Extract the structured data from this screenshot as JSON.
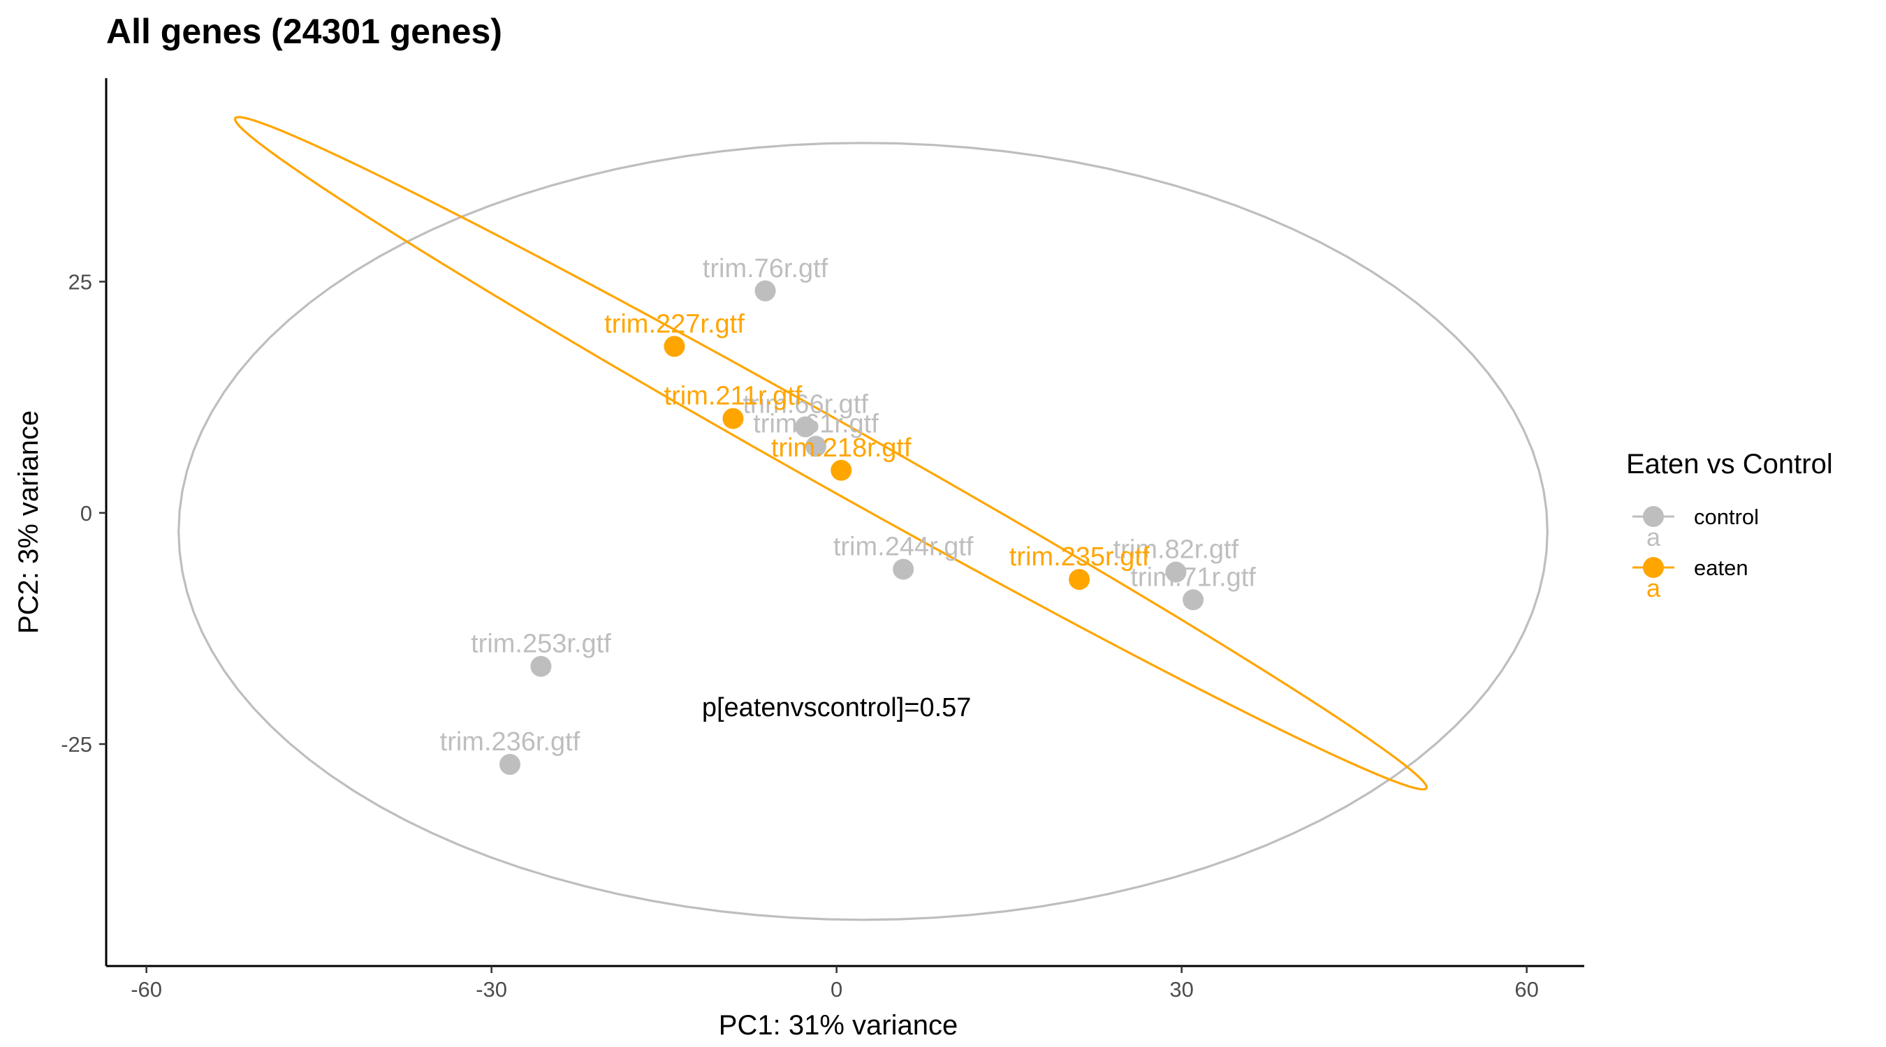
{
  "chart_data": {
    "type": "scatter",
    "title": "All genes (24301 genes)",
    "xlabel": "PC1: 31% variance",
    "ylabel": "PC2: 3% variance",
    "xlim": [
      -63.5,
      65
    ],
    "ylim": [
      -49,
      47
    ],
    "x_ticks": [
      -60,
      -30,
      0,
      30,
      60
    ],
    "x_tick_labels": [
      "-60",
      "-30",
      "0",
      "30",
      "60"
    ],
    "y_ticks": [
      -25,
      0,
      25
    ],
    "y_tick_labels": [
      "-25",
      "0",
      "25"
    ],
    "grid": false,
    "legend": {
      "title": "Eaten vs Control",
      "position": "right",
      "entries": [
        {
          "label": "control",
          "color": "#bebebe",
          "key_glyph": "a"
        },
        {
          "label": "eaten",
          "color": "#ffa500",
          "key_glyph": "a"
        }
      ]
    },
    "annotation": "p[eatenvscontrol]=0.57",
    "series": [
      {
        "name": "control",
        "color": "#bebebe",
        "points": [
          {
            "label": "trim.76r.gtf",
            "x": -6.2,
            "y": 24.0
          },
          {
            "label": "trim.66r.gtf",
            "x": -2.7,
            "y": 9.3
          },
          {
            "label": "trim.61r.gtf",
            "x": -1.8,
            "y": 7.2
          },
          {
            "label": "trim.244r.gtf",
            "x": 5.8,
            "y": -6.1
          },
          {
            "label": "trim.82r.gtf",
            "x": 29.5,
            "y": -6.4
          },
          {
            "label": "trim.71r.gtf",
            "x": 31.0,
            "y": -9.4
          },
          {
            "label": "trim.253r.gtf",
            "x": -25.7,
            "y": -16.6
          },
          {
            "label": "trim.236r.gtf",
            "x": -28.4,
            "y": -27.2
          }
        ],
        "ellipse": {
          "cx": 2.3,
          "cy": -2.0,
          "rx": 59.5,
          "ry": 42.0,
          "angle_deg": 0
        }
      },
      {
        "name": "eaten",
        "color": "#ffa500",
        "points": [
          {
            "label": "trim.227r.gtf",
            "x": -14.1,
            "y": 18.0
          },
          {
            "label": "trim.211r.gtf",
            "x": -9.0,
            "y": 10.2
          },
          {
            "label": "trim.218r.gtf",
            "x": 0.4,
            "y": 4.6
          },
          {
            "label": "trim.235r.gtf",
            "x": 21.1,
            "y": -7.2
          }
        ],
        "ellipse": {
          "cx": -0.5,
          "cy": 6.45,
          "rx": 63.2,
          "ry": 3.3,
          "angle_deg": -35.0
        }
      }
    ]
  }
}
